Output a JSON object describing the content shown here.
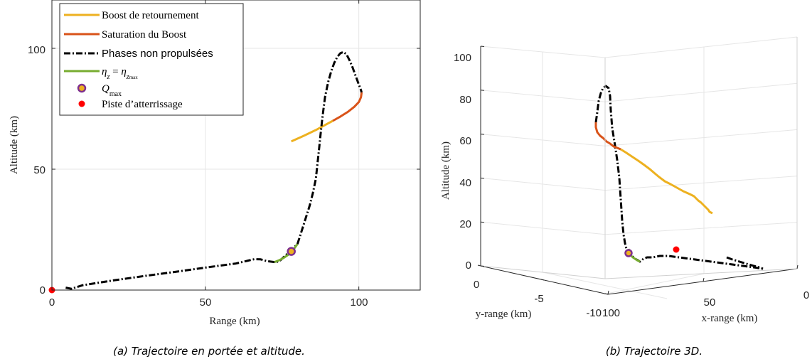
{
  "colors": {
    "boost": "#EDB120",
    "saturation": "#D95319",
    "coast": "#000000",
    "eta": "#77AC30",
    "qmax_edge": "#7E2F8E",
    "qmax_face": "#EDB120",
    "runway": "#FF0000",
    "grid": "#e6e6e6"
  },
  "chart_data": [
    {
      "type": "line",
      "xlabel": "Range (km)",
      "ylabel": "Altitude (km)",
      "xlim": [
        0,
        120
      ],
      "ylim": [
        0,
        120
      ],
      "xticks": [
        "0",
        "50",
        "100"
      ],
      "yticks": [
        "0",
        "50",
        "100"
      ],
      "grid": true,
      "legend_position": "top-left",
      "legend": [
        "Boost de retournement",
        "Saturation du Boost",
        "Phases non propulsées",
        "ηz = ηzmax",
        "Qmax",
        "Piste d’atterrissage"
      ],
      "series": [
        {
          "name": "Boost de retournement",
          "x": [
            78,
            82,
            86,
            89,
            91.5
          ],
          "y": [
            61.5,
            63.8,
            66.2,
            68.3,
            70
          ]
        },
        {
          "name": "Saturation du Boost",
          "x": [
            91.5,
            94,
            96.5,
            98.5,
            100,
            100.7,
            100.9
          ],
          "y": [
            70,
            71.8,
            73.8,
            75.8,
            77.8,
            79.8,
            81.8
          ]
        },
        {
          "name": "Phases non propulsées",
          "x": [
            4.5,
            6.5,
            7.5,
            10,
            20,
            30,
            40,
            50,
            60,
            64,
            66,
            68,
            70,
            72.5,
            74,
            80,
            81,
            82,
            83,
            84,
            85,
            86,
            86.5,
            87,
            87.5,
            88,
            88.5,
            89,
            90,
            91,
            92,
            93,
            94,
            95,
            96,
            97,
            98,
            99,
            100,
            100.6,
            100.9
          ],
          "y": [
            1,
            0.5,
            1,
            2,
            4,
            5.8,
            7.5,
            9.3,
            11,
            12.2,
            12.8,
            12.7,
            12,
            11.6,
            11.8,
            19,
            23,
            27,
            31,
            35,
            40,
            46,
            52,
            58,
            64,
            70,
            75,
            80,
            86,
            90.5,
            94,
            96.5,
            98,
            98.5,
            97.5,
            95,
            92,
            88.5,
            85,
            83,
            81.8
          ]
        },
        {
          "name": "ηz = ηzmax",
          "x": [
            72.5,
            74,
            75.5,
            77,
            78,
            79,
            80
          ],
          "y": [
            11.6,
            12.3,
            13.3,
            14.6,
            15.8,
            17.3,
            19
          ]
        }
      ],
      "points": [
        {
          "name": "Qmax",
          "x": 78,
          "y": 16
        },
        {
          "name": "Piste d’atterrissage",
          "x": 0,
          "y": 0
        }
      ],
      "caption": "(a) Trajectoire en portée et altitude."
    },
    {
      "type": "line",
      "xlabel": "x-range (km)",
      "ylabel": "y-range (km)",
      "zlabel": "Altitude (km)",
      "xlim": [
        0,
        100
      ],
      "ylim": [
        -10,
        0
      ],
      "zlim": [
        0,
        100
      ],
      "xticks": [
        "100",
        "50",
        "0"
      ],
      "yticks": [
        "0",
        "-5",
        "-10"
      ],
      "zticks": [
        "0",
        "20",
        "40",
        "60",
        "80",
        "100"
      ],
      "grid": true,
      "series": [
        {
          "name": "Boost de retournement"
        },
        {
          "name": "Saturation du Boost"
        },
        {
          "name": "Phases non propulsées"
        },
        {
          "name": "ηz = ηzmax"
        }
      ],
      "points": [
        {
          "name": "Qmax",
          "z": 16
        },
        {
          "name": "Piste d’atterrissage",
          "z": 0
        }
      ],
      "caption": "(b) Trajectoire 3D."
    }
  ]
}
